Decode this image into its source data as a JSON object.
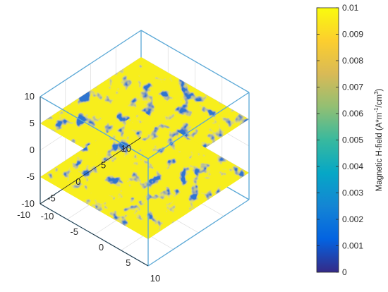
{
  "chart_data": {
    "type": "heatmap",
    "plot_kind": "3d-slices",
    "title": "",
    "axes": {
      "x": {
        "ticks": [
          -10,
          -5,
          0,
          5,
          10
        ],
        "range": [
          -10,
          10
        ]
      },
      "y": {
        "ticks": [
          -10,
          -5,
          0,
          5,
          10
        ],
        "range": [
          -10,
          10
        ]
      },
      "z": {
        "ticks": [
          -10,
          -5,
          0,
          5,
          10
        ],
        "range": [
          -10,
          10
        ]
      }
    },
    "slices": [
      {
        "plane": "z",
        "z": 5
      },
      {
        "plane": "z",
        "z": -5
      }
    ],
    "grid": true,
    "box": true,
    "colorbar": {
      "colormap": "parula",
      "range": [
        0,
        0.01
      ],
      "ticks": [
        0,
        0.001,
        0.002,
        0.003,
        0.004,
        0.005,
        0.006,
        0.007,
        0.008,
        0.009,
        0.01
      ],
      "tick_labels": [
        "0",
        "0.001",
        "0.002",
        "0.003",
        "0.004",
        "0.005",
        "0.006",
        "0.007",
        "0.008",
        "0.009",
        "0.01"
      ],
      "label": "Magnetic H-field (A*m",
      "label_sup1": "-1",
      "label_mid": "/cm",
      "label_sup2": "3",
      "label_end": ")",
      "location": "right"
    }
  }
}
